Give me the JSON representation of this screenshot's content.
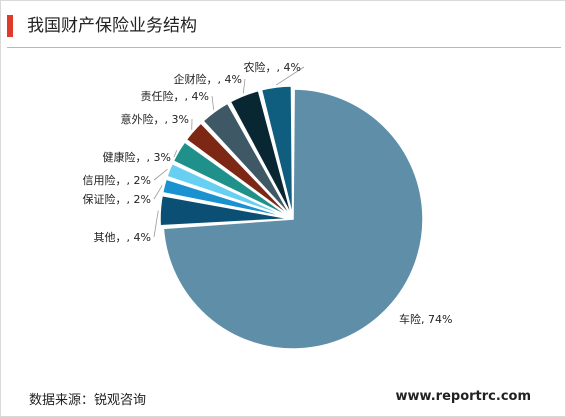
{
  "title": "我国财产保险业务结构",
  "source": "数据来源：锐观咨询",
  "website": "www.reportrc.com",
  "chart_data": {
    "type": "pie",
    "title": "我国财产保险业务结构",
    "slices": [
      {
        "name": "车险",
        "value": 74,
        "label": "车险, 74%",
        "color": "#5f8fa8"
      },
      {
        "name": "其他",
        "value": 4,
        "label": "其他，, 4%",
        "color": "#0b4f74"
      },
      {
        "name": "保证险",
        "value": 2,
        "label": "保证险，, 2%",
        "color": "#1a92cf"
      },
      {
        "name": "信用险",
        "value": 2,
        "label": "信用险，, 2%",
        "color": "#67d0f2"
      },
      {
        "name": "健康险",
        "value": 3,
        "label": "健康险，, 3%",
        "color": "#20918a"
      },
      {
        "name": "意外险",
        "value": 3,
        "label": "意外险，, 3%",
        "color": "#7d2715"
      },
      {
        "name": "责任险",
        "value": 4,
        "label": "责任险，, 4%",
        "color": "#3e5866"
      },
      {
        "name": "企财险",
        "value": 4,
        "label": "企财险，, 4%",
        "color": "#082733"
      },
      {
        "name": "农险",
        "value": 4,
        "label": "农险，, 4%",
        "color": "#0f5e80"
      }
    ]
  }
}
